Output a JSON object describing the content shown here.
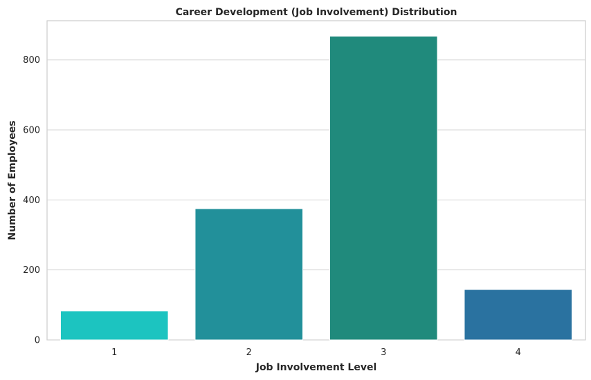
{
  "chart_data": {
    "type": "bar",
    "title": "Career Development (Job Involvement) Distribution",
    "xlabel": "Job Involvement Level",
    "ylabel": "Number of Employees",
    "categories": [
      "1",
      "2",
      "3",
      "4"
    ],
    "values": [
      83,
      375,
      868,
      144
    ],
    "colors": [
      "#1cc4c0",
      "#22909a",
      "#208a7c",
      "#2a72a0"
    ],
    "yticks": [
      0,
      200,
      400,
      600,
      800
    ],
    "ylim": [
      0,
      912
    ],
    "grid": "y-axis",
    "legend": "none"
  }
}
